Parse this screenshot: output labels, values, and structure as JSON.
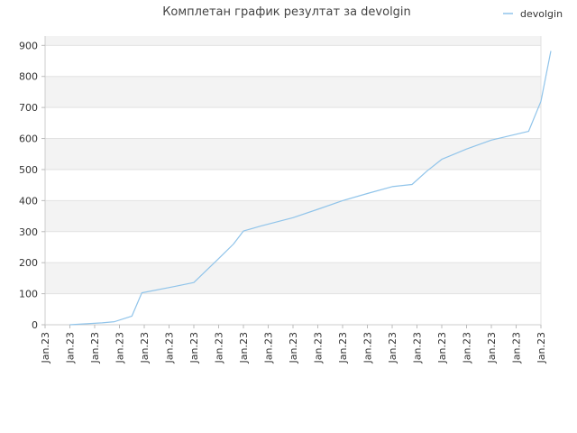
{
  "chart_data": {
    "type": "line",
    "title": "Комплетан график резултат за devolgin",
    "xlabel": "",
    "ylabel": "",
    "ylim": [
      0,
      930
    ],
    "yticks": [
      0,
      100,
      200,
      300,
      400,
      500,
      600,
      700,
      800,
      900
    ],
    "xtick_labels": [
      "Jan.23",
      "Jan.23",
      "Jan.23",
      "Jan.23",
      "Jan.23",
      "Jan.23",
      "Jan.23",
      "Jan.23",
      "Jan.23",
      "Jan.23",
      "Jan.23",
      "Jan.23",
      "Jan.23",
      "Jan.23",
      "Jan.23",
      "Jan.23",
      "Jan.23",
      "Jan.23",
      "Jan.23",
      "Jan.23",
      "Jan.23"
    ],
    "grid": true,
    "legend_position": "top-right",
    "series": [
      {
        "name": "devolgin",
        "color": "#90c4ea",
        "x": [
          1.0,
          1.6,
          2.3,
          2.8,
          3.2,
          3.5,
          3.9,
          5.2,
          6.0,
          7.0,
          7.6,
          8.0,
          8.7,
          10.0,
          11.0,
          12.0,
          13.0,
          14.0,
          14.8,
          15.4,
          16.0,
          17.0,
          18.0,
          19.5,
          20.0,
          20.4
        ],
        "values": [
          0,
          3,
          6,
          10,
          20,
          28,
          103,
          123,
          136,
          213,
          260,
          302,
          318,
          345,
          372,
          400,
          423,
          445,
          452,
          495,
          533,
          566,
          595,
          623,
          720,
          882
        ]
      }
    ]
  }
}
